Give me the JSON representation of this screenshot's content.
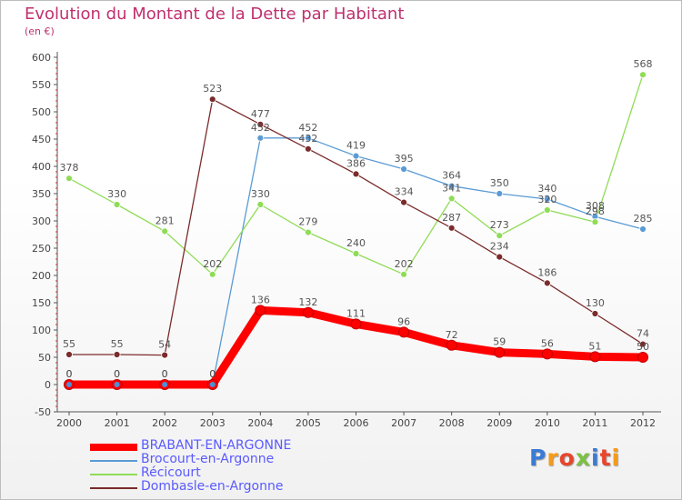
{
  "title": "Evolution du Montant de la Dette par Habitant",
  "subtitle": "(en €)",
  "logo": {
    "text": "Proxiti",
    "letter_colors": [
      "#3a7bd5",
      "#f59b1c",
      "#e8452c",
      "#7cc242",
      "#3a7bd5",
      "#e8452c",
      "#f59b1c"
    ]
  },
  "chart_data": {
    "type": "line",
    "x": [
      2000,
      2001,
      2002,
      2003,
      2004,
      2005,
      2006,
      2007,
      2008,
      2009,
      2010,
      2011,
      2012
    ],
    "ylim": [
      -50,
      600
    ],
    "yticks": [
      -50,
      0,
      50,
      100,
      150,
      200,
      250,
      300,
      350,
      400,
      450,
      500,
      550,
      600
    ],
    "grid": false,
    "legend_position": "bottom-left",
    "series": [
      {
        "name": "Brocourt-en-Argonne",
        "color": "#5b9bd5",
        "values": [
          0,
          0,
          0,
          0,
          452,
          452,
          419,
          395,
          364,
          350,
          340,
          308,
          285
        ],
        "labels": [
          "0",
          "0",
          "0",
          "0",
          "452",
          "452",
          "419",
          "395",
          "364",
          "350",
          "340",
          "308",
          "285"
        ]
      },
      {
        "name": "Récicourt",
        "color": "#8fdc56",
        "values": [
          378,
          330,
          281,
          202,
          330,
          279,
          240,
          202,
          341,
          273,
          320,
          298,
          568
        ],
        "labels": [
          "378",
          "330",
          "281",
          "202",
          "330",
          "279",
          "240",
          "202",
          "341",
          "273",
          "320",
          "298",
          "568"
        ]
      },
      {
        "name": "Dombasle-en-Argonne",
        "color": "#7b2b2b",
        "values": [
          55,
          55,
          54,
          523,
          477,
          432,
          386,
          334,
          287,
          234,
          186,
          130,
          74
        ],
        "labels": [
          "55",
          "55",
          "54",
          "523",
          "477",
          "432",
          "386",
          "334",
          "287",
          "234",
          "186",
          "130",
          "74"
        ]
      },
      {
        "name": "BRABANT-EN-ARGONNE",
        "color": "#ff0000",
        "values": [
          0,
          0,
          0,
          0,
          136,
          132,
          111,
          96,
          72,
          59,
          56,
          51,
          50
        ],
        "labels": [
          "0",
          "0",
          "0",
          "0",
          "136",
          "132",
          "111",
          "96",
          "72",
          "59",
          "56",
          "51",
          "50"
        ]
      }
    ]
  }
}
